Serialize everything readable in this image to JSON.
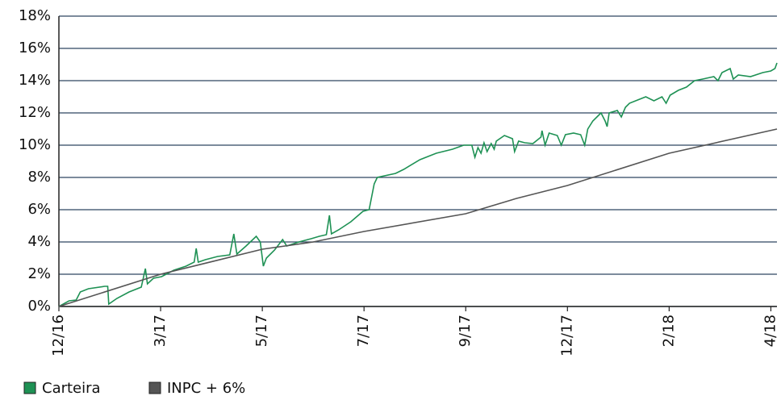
{
  "chart_data": {
    "type": "line",
    "xlim": [
      0,
      7.06
    ],
    "xticks": [
      {
        "value": 0,
        "label": "12/16"
      },
      {
        "value": 1,
        "label": "3/17"
      },
      {
        "value": 2,
        "label": "5/17"
      },
      {
        "value": 3,
        "label": "7/17"
      },
      {
        "value": 4,
        "label": "9/17"
      },
      {
        "value": 5,
        "label": "12/17"
      },
      {
        "value": 6,
        "label": "2/18"
      },
      {
        "value": 7,
        "label": "4/18"
      }
    ],
    "ylim": [
      0,
      18
    ],
    "yticks": [
      {
        "value": 0,
        "label": "0%"
      },
      {
        "value": 2,
        "label": "2%"
      },
      {
        "value": 4,
        "label": "4%"
      },
      {
        "value": 6,
        "label": "6%"
      },
      {
        "value": 8,
        "label": "8%"
      },
      {
        "value": 10,
        "label": "10%"
      },
      {
        "value": 12,
        "label": "12%"
      },
      {
        "value": 14,
        "label": "14%"
      },
      {
        "value": 16,
        "label": "16%"
      },
      {
        "value": 18,
        "label": "18%"
      }
    ],
    "grid": true,
    "series": [
      {
        "name": "Carteira",
        "color": "#1e9154",
        "x": [
          0,
          0.1,
          0.17,
          0.21,
          0.29,
          0.45,
          0.48,
          0.49,
          0.57,
          0.69,
          0.81,
          0.85,
          0.87,
          0.93,
          1.01,
          1.13,
          1.25,
          1.33,
          1.35,
          1.37,
          1.44,
          1.56,
          1.68,
          1.72,
          1.75,
          1.84,
          1.94,
          1.98,
          2.01,
          2.04,
          2.12,
          2.2,
          2.24,
          2.36,
          2.48,
          2.56,
          2.63,
          2.66,
          2.68,
          2.75,
          2.87,
          2.99,
          3.05,
          3.1,
          3.13,
          3.31,
          3.39,
          3.55,
          3.71,
          3.87,
          3.98,
          4.06,
          4.09,
          4.12,
          4.15,
          4.18,
          4.21,
          4.25,
          4.28,
          4.3,
          4.38,
          4.46,
          4.48,
          4.52,
          4.58,
          4.66,
          4.74,
          4.75,
          4.78,
          4.82,
          4.9,
          4.94,
          4.98,
          5.06,
          5.13,
          5.17,
          5.2,
          5.25,
          5.33,
          5.37,
          5.39,
          5.41,
          5.49,
          5.53,
          5.57,
          5.61,
          5.69,
          5.77,
          5.85,
          5.93,
          5.97,
          6.01,
          6.09,
          6.17,
          6.25,
          6.33,
          6.44,
          6.48,
          6.52,
          6.6,
          6.63,
          6.68,
          6.8,
          6.92,
          7.0,
          7.04,
          7.06
        ],
        "values": [
          0,
          0.35,
          0.4,
          0.9,
          1.1,
          1.25,
          1.25,
          0.15,
          0.5,
          0.9,
          1.2,
          2.35,
          1.4,
          1.75,
          1.85,
          2.25,
          2.5,
          2.75,
          3.6,
          2.75,
          2.9,
          3.1,
          3.2,
          4.5,
          3.25,
          3.75,
          4.35,
          4.0,
          2.5,
          3.0,
          3.5,
          4.15,
          3.75,
          4.0,
          4.2,
          4.35,
          4.45,
          5.65,
          4.5,
          4.75,
          5.25,
          5.9,
          6.0,
          7.6,
          8.0,
          8.25,
          8.5,
          9.1,
          9.5,
          9.75,
          10.0,
          10.0,
          9.25,
          9.85,
          9.5,
          10.15,
          9.6,
          10.1,
          9.75,
          10.25,
          10.6,
          10.4,
          9.6,
          10.25,
          10.15,
          10.1,
          10.5,
          10.9,
          10.0,
          10.75,
          10.6,
          10.0,
          10.65,
          10.75,
          10.65,
          10.0,
          11.0,
          11.5,
          12.0,
          11.5,
          11.15,
          12.0,
          12.15,
          11.75,
          12.35,
          12.6,
          12.8,
          13.0,
          12.75,
          13.0,
          12.6,
          13.1,
          13.4,
          13.6,
          14.0,
          14.1,
          14.25,
          14.0,
          14.5,
          14.75,
          14.1,
          14.35,
          14.25,
          14.5,
          14.6,
          14.75,
          15.1
        ]
      },
      {
        "name": "INPC + 6%",
        "color": "#555555",
        "x": [
          0,
          1,
          2,
          2.5,
          3,
          4,
          4.5,
          5,
          6,
          7.06
        ],
        "values": [
          0,
          2,
          3.55,
          4,
          4.65,
          5.75,
          6.7,
          7.5,
          9.5,
          11
        ]
      }
    ]
  }
}
